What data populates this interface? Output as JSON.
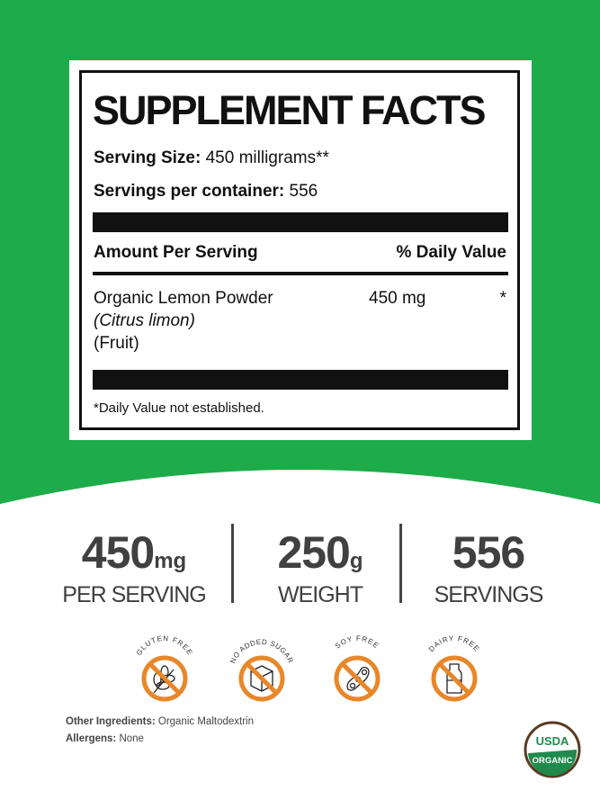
{
  "label": {
    "title": "SUPPLEMENT FACTS",
    "serving_size_label": "Serving Size:",
    "serving_size_value": "450 milligrams**",
    "servings_label": "Servings per container:",
    "servings_value": "556",
    "amount_header": "Amount Per Serving",
    "dv_header": "% Daily Value",
    "ingredient": {
      "name": "Organic Lemon Powder",
      "latin": "(Citrus limon)",
      "part": "(Fruit)",
      "amount": "450 mg",
      "dv": "*"
    },
    "footnote": "*Daily Value not established."
  },
  "stats": [
    {
      "value": "450",
      "unit": "mg",
      "label": "PER SERVING"
    },
    {
      "value": "250",
      "unit": "g",
      "label": "WEIGHT"
    },
    {
      "value": "556",
      "unit": "",
      "label": "SERVINGS"
    }
  ],
  "badges": [
    {
      "text": "GLUTEN FREE",
      "icon": "wheat-icon"
    },
    {
      "text": "NO ADDED SUGAR",
      "icon": "sugar-cube-icon"
    },
    {
      "text": "SOY FREE",
      "icon": "soybean-icon"
    },
    {
      "text": "DAIRY FREE",
      "icon": "milk-bottle-icon"
    }
  ],
  "footer": {
    "other_label": "Other Ingredients:",
    "other_value": "Organic Maltodextrin",
    "allergens_label": "Allergens:",
    "allergens_value": "None"
  },
  "usda": {
    "top": "USDA",
    "bottom": "ORGANIC"
  },
  "colors": {
    "green": "#1eab4a",
    "orange": "#e8872a",
    "text": "#404040",
    "usda_green": "#1f8a4c",
    "usda_brown": "#5a3a22"
  }
}
